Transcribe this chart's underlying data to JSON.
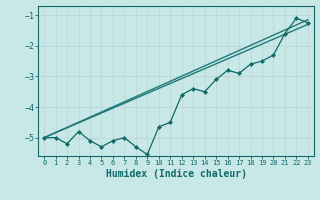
{
  "title": "",
  "xlabel": "Humidex (Indice chaleur)",
  "bg_color": "#c8e8e8",
  "grid_color": "#c0d8d8",
  "line_color": "#207878",
  "line_color2": "#106868",
  "xlim": [
    -0.5,
    23.5
  ],
  "ylim": [
    -5.6,
    -0.7
  ],
  "yticks": [
    -5,
    -4,
    -3,
    -2,
    -1
  ],
  "xticks": [
    0,
    1,
    2,
    3,
    4,
    5,
    6,
    7,
    8,
    9,
    10,
    11,
    12,
    13,
    14,
    15,
    16,
    17,
    18,
    19,
    20,
    21,
    22,
    23
  ],
  "series1_x": [
    0,
    1,
    2,
    3,
    4,
    5,
    6,
    7,
    8,
    9,
    10,
    11,
    12,
    13,
    14,
    15,
    16,
    17,
    18,
    19,
    20,
    21,
    22,
    23
  ],
  "series1_y": [
    -5.0,
    -5.0,
    -5.2,
    -4.8,
    -5.1,
    -5.3,
    -5.1,
    -5.0,
    -5.3,
    -5.55,
    -4.65,
    -4.5,
    -3.6,
    -3.4,
    -3.5,
    -3.1,
    -2.8,
    -2.9,
    -2.6,
    -2.5,
    -2.3,
    -1.6,
    -1.1,
    -1.25
  ],
  "series2_x": [
    0,
    23
  ],
  "series2_y": [
    -5.0,
    -1.3
  ],
  "series3_x": [
    0,
    23
  ],
  "series3_y": [
    -5.0,
    -1.15
  ],
  "tick_fontsize": 5.5,
  "xlabel_fontsize": 7
}
